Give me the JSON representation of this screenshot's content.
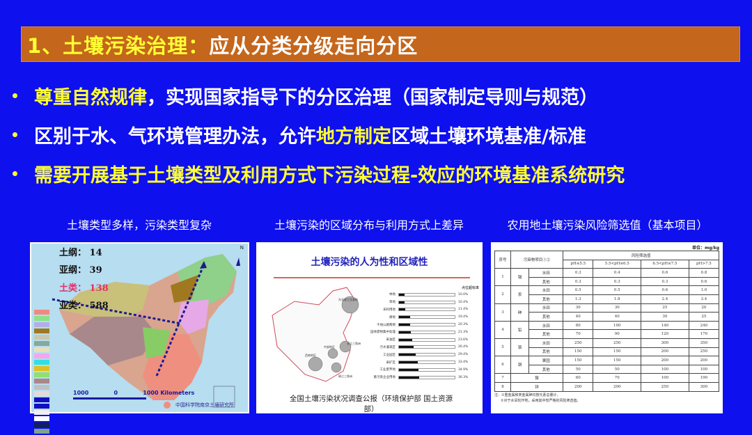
{
  "title": {
    "highlight": "1、土壤污染治理：",
    "rest": "应从分类分级走向分区"
  },
  "bullets": [
    {
      "parts": [
        {
          "t": "尊重自然规律",
          "y": true
        },
        {
          "t": "，实现国家指导下的分区治理（国家制定导则与规范）",
          "y": false
        }
      ]
    },
    {
      "parts": [
        {
          "t": "区别于水、气环境管理办法，允许",
          "y": false
        },
        {
          "t": "地方制定",
          "y": true
        },
        {
          "t": "区域土壤环境基准/标准",
          "y": false
        }
      ]
    },
    {
      "parts": [
        {
          "t": "需要开展基于土壤类型及利用方式下污染过程-效应的环境基准系统研究",
          "y": true
        }
      ]
    }
  ],
  "colors": {
    "background": "#0e10ee",
    "title_bar": "#c4661c",
    "highlight": "#ffff33"
  },
  "captions": [
    "土壤类型多样，污染类型复杂",
    "土壤污染的区域分布与利用方式上差异",
    "农用地土壤污染风险筛选值（基本项目）"
  ],
  "soil_map": {
    "stats": [
      {
        "label": "土纲：",
        "value": "14"
      },
      {
        "label": "亚纲：",
        "value": "39"
      },
      {
        "label": "土类：",
        "value": "138"
      },
      {
        "label": "亚类：",
        "value": "588"
      }
    ],
    "north": "N",
    "scale": {
      "left": "1000",
      "mid": "0",
      "right": "1000",
      "unit": "Kilometers"
    },
    "institute": "中国科学院南京土壤研究所"
  },
  "pollution_figure": {
    "title": "土壤污染的人为性和区域性",
    "regions": [
      "东北老工业基地",
      "长江三角洲",
      "中部地区",
      "西南地区",
      "珠江三角洲"
    ],
    "chart_data": {
      "type": "bar",
      "ylabel": "点位超标率",
      "categories": [
        "林地",
        "草地",
        "未利用地",
        "耕地",
        "干线公路两侧",
        "固体废物集中处理",
        "采油区",
        "污水灌溉区",
        "工业园区",
        "采矿区",
        "工业废弃地",
        "重污染企业用地"
      ],
      "values": [
        10.0,
        10.4,
        11.4,
        19.4,
        20.3,
        21.3,
        23.6,
        26.4,
        29.4,
        33.4,
        34.9,
        36.3
      ],
      "xlim": [
        0,
        100
      ]
    },
    "source": "全国土壤污染状况调查公报（环境保护部 国土资源部）"
  },
  "standard_table": {
    "unit": "单位：mg/kg",
    "headers": {
      "no": "序号",
      "item": "污染物项目①②",
      "group": "风险筛选值",
      "ph": [
        "pH≤5.5",
        "5.5<pH≤6.5",
        "6.5<pH≤7.5",
        "pH>7.5"
      ]
    },
    "rows": [
      {
        "no": "1",
        "item": "镉",
        "sub": [
          {
            "type": "水田",
            "v": [
              "0.3",
              "0.4",
              "0.6",
              "0.8"
            ]
          },
          {
            "type": "其他",
            "v": [
              "0.3",
              "0.3",
              "0.3",
              "0.6"
            ]
          }
        ]
      },
      {
        "no": "2",
        "item": "汞",
        "sub": [
          {
            "type": "水田",
            "v": [
              "0.5",
              "0.5",
              "0.6",
              "1.0"
            ]
          },
          {
            "type": "其他",
            "v": [
              "1.3",
              "1.8",
              "2.4",
              "3.4"
            ]
          }
        ]
      },
      {
        "no": "3",
        "item": "砷",
        "sub": [
          {
            "type": "水田",
            "v": [
              "30",
              "30",
              "25",
              "20"
            ]
          },
          {
            "type": "其他",
            "v": [
              "40",
              "40",
              "30",
              "25"
            ]
          }
        ]
      },
      {
        "no": "4",
        "item": "铅",
        "sub": [
          {
            "type": "水田",
            "v": [
              "80",
              "100",
              "140",
              "240"
            ]
          },
          {
            "type": "其他",
            "v": [
              "70",
              "90",
              "120",
              "170"
            ]
          }
        ]
      },
      {
        "no": "5",
        "item": "铬",
        "sub": [
          {
            "type": "水田",
            "v": [
              "250",
              "250",
              "300",
              "350"
            ]
          },
          {
            "type": "其他",
            "v": [
              "150",
              "150",
              "200",
              "250"
            ]
          }
        ]
      },
      {
        "no": "6",
        "item": "铜",
        "sub": [
          {
            "type": "果园",
            "v": [
              "150",
              "150",
              "200",
              "200"
            ]
          },
          {
            "type": "其他",
            "v": [
              "50",
              "50",
              "100",
              "100"
            ]
          }
        ]
      },
      {
        "no": "7",
        "item": "镍",
        "sub": [
          {
            "type": "",
            "v": [
              "60",
              "70",
              "100",
              "190"
            ]
          }
        ]
      },
      {
        "no": "8",
        "item": "锌",
        "sub": [
          {
            "type": "",
            "v": [
              "200",
              "200",
              "250",
              "300"
            ]
          }
        ]
      }
    ],
    "notes": [
      "注：①重金属和类金属砷均按元素总量计。",
      "②对于水旱轮作地，采用其中较严格的风险筛选值。"
    ]
  }
}
